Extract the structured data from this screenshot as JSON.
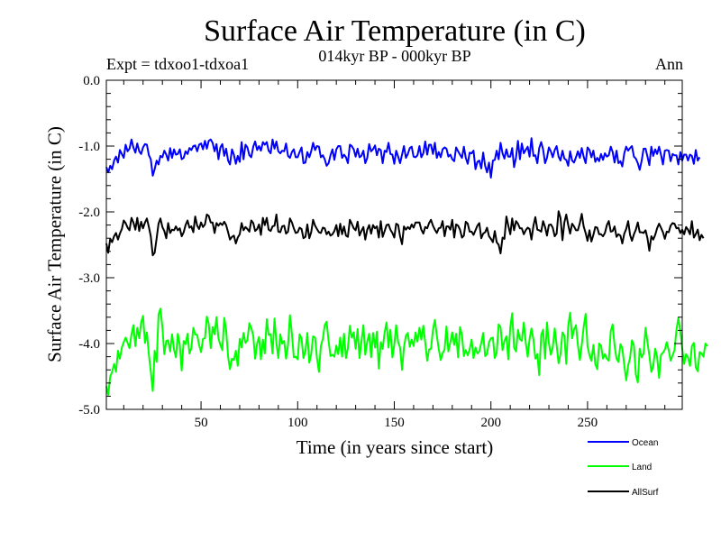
{
  "chart_data": {
    "type": "line",
    "title": "Surface Air Temperature (in C)",
    "subtitle": "014kyr BP - 000kyr BP",
    "experiment": "Expt = tdxoo1-tdxoa1",
    "season": "Ann",
    "xlabel": "Time (in years since start)",
    "ylabel": "Surface Air Temperature (in C)",
    "xlim": [
      1,
      299
    ],
    "ylim": [
      -5.0,
      0.0
    ],
    "xticks": [
      50,
      100,
      150,
      200,
      250
    ],
    "xtick_labels": [
      "50",
      "100",
      "150",
      "200",
      "250"
    ],
    "yticks": [
      0.0,
      -1.0,
      -2.0,
      -3.0,
      -4.0,
      -5.0
    ],
    "ytick_labels": [
      "0.0",
      "-1.0",
      "-2.0",
      "-3.0",
      "-4.0",
      "-5.0"
    ],
    "series": [
      {
        "name": "Ocean",
        "color": "#0000ff",
        "values": [
          -1.32,
          -1.4,
          -1.3,
          -1.35,
          -1.22,
          -1.16,
          -1.25,
          -1.06,
          -1.12,
          -1.18,
          -0.98,
          -1.08,
          -1.04,
          -0.9,
          -1.02,
          -1.1,
          -0.96,
          -1.08,
          -1.12,
          -1.02,
          -0.97,
          -0.98,
          -1.14,
          -1.2,
          -1.45,
          -1.35,
          -1.22,
          -1.28,
          -1.15,
          -1.17,
          -1.07,
          -1.13,
          -1.22,
          -1.03,
          -1.18,
          -1.05,
          -1.13,
          -1.12,
          -1.05,
          -1.2,
          -1.18,
          -1.08,
          -1.12,
          -1.03,
          -1.06,
          -1.0,
          -0.99,
          -1.08,
          -0.98,
          -0.96,
          -1.05,
          -0.92,
          -1.04,
          -0.92,
          -0.9,
          -0.95,
          -1.08,
          -0.97,
          -1.2,
          -1.02,
          -0.97,
          -1.15,
          -1.04,
          -1.22,
          -1.28,
          -1.05,
          -1.13,
          -1.27,
          -1.15,
          -1.24,
          -0.94,
          -1.2,
          -0.98,
          -1.02,
          -1.14,
          -1.17,
          -1.01,
          -0.93,
          -1.06,
          -1.0,
          -1.07,
          -0.94,
          -0.98,
          -0.94,
          -1.07,
          -1.11,
          -0.9,
          -1.04,
          -0.93,
          -1.08,
          -1.11,
          -1.07,
          -1.08,
          -0.96,
          -1.15,
          -1.18,
          -1.09,
          -1.05,
          -1.17,
          -1.17,
          -1.09,
          -1.02,
          -1.26,
          -1.25,
          -1.09,
          -1.17,
          -1.08,
          -0.95,
          -1.06,
          -1.0,
          -1.01,
          -1.17,
          -1.14,
          -1.2,
          -1.3,
          -1.26,
          -1.14,
          -1.05,
          -1.21,
          -1.05,
          -1.0,
          -1.0,
          -1.18,
          -1.13,
          -1.17,
          -1.26,
          -0.98,
          -1.0,
          -1.05,
          -1.16,
          -1.04,
          -1.17,
          -1.15,
          -1.07,
          -1.26,
          -1.18,
          -0.97,
          -1.08,
          -1.05,
          -0.99,
          -1.14,
          -1.04,
          -1.06,
          -1.26,
          -1.07,
          -1.09,
          -0.95,
          -1.12,
          -1.13,
          -1.27,
          -1.07,
          -1.16,
          -1.26,
          -1.13,
          -1.0,
          -1.18,
          -1.12,
          -1.03,
          -1.01,
          -1.16,
          -1.17,
          -1.14,
          -1.0,
          -1.17,
          -1.11,
          -0.93,
          -1.13,
          -0.98,
          -0.98,
          -1.12,
          -0.95,
          -1.18,
          -1.09,
          -1.17,
          -1.05,
          -1.02,
          -1.04,
          -1.16,
          -1.13,
          -1.2,
          -1.23,
          -1.02,
          -1.08,
          -1.13,
          -1.18,
          -1.01,
          -1.18,
          -1.27,
          -1.1,
          -1.11,
          -1.07,
          -1.35,
          -1.24,
          -1.22,
          -1.34,
          -1.1,
          -1.3,
          -1.4,
          -1.25,
          -1.48,
          -1.22,
          -1.21,
          -1.07,
          -1.2,
          -0.95,
          -1.11,
          -1.19,
          -1.05,
          -1.16,
          -1.16,
          -1.03,
          -1.32,
          -1.17,
          -0.92,
          -1.2,
          -0.96,
          -1.11,
          -1.06,
          -1.01,
          -1.16,
          -0.88,
          -1.15,
          -1.14,
          -1.26,
          -1.03,
          -0.94,
          -1.05,
          -1.26,
          -1.18,
          -1.02,
          -1.08,
          -1.17,
          -1.06,
          -1.0,
          -1.16,
          -1.22,
          -1.07,
          -1.19,
          -1.21,
          -1.3,
          -1.08,
          -1.22,
          -1.25,
          -1.17,
          -1.08,
          -1.18,
          -1.03,
          -1.16,
          -1.26,
          -1.02,
          -1.06,
          -1.17,
          -1.07,
          -1.24,
          -1.18,
          -1.23,
          -1.12,
          -1.21,
          -1.11,
          -1.16,
          -1.14,
          -1.01,
          -1.09,
          -1.25,
          -1.07,
          -1.26,
          -1.23,
          -1.31,
          -1.11,
          -1.01,
          -1.07,
          -1.03,
          -1.0,
          -1.16,
          -1.19,
          -1.26,
          -1.36,
          -1.22,
          -1.04,
          -1.04,
          -1.16,
          -1.29,
          -1.01,
          -1.15,
          -1.05,
          -1.12,
          -1.01,
          -1.13,
          -1.28,
          -1.07,
          -1.06,
          -1.07,
          -1.23,
          -1.12,
          -1.14,
          -1.14,
          -1.28,
          -1.09,
          -1.22,
          -1.13,
          -1.13,
          -1.22,
          -1.13,
          -1.15,
          -1.27,
          -1.06,
          -1.22,
          -1.17
        ]
      },
      {
        "name": "Land",
        "color": "#00ff00",
        "values": [
          -4.65,
          -4.78,
          -4.5,
          -4.43,
          -4.31,
          -4.43,
          -4.11,
          -4.23,
          -4.06,
          -3.98,
          -3.91,
          -3.99,
          -4.07,
          -3.86,
          -3.72,
          -4.04,
          -3.76,
          -3.92,
          -3.68,
          -3.58,
          -3.99,
          -3.83,
          -4.17,
          -4.42,
          -4.72,
          -4.11,
          -4.28,
          -3.56,
          -3.47,
          -3.75,
          -4.16,
          -3.96,
          -3.95,
          -4.12,
          -3.86,
          -4.09,
          -4.21,
          -3.85,
          -4.02,
          -4.41,
          -3.96,
          -4.01,
          -3.85,
          -4.15,
          -4.07,
          -3.76,
          -3.86,
          -3.87,
          -4.02,
          -4.13,
          -3.93,
          -3.92,
          -3.59,
          -3.7,
          -4.07,
          -3.75,
          -3.86,
          -3.6,
          -3.92,
          -4.02,
          -4.1,
          -3.61,
          -3.79,
          -4.2,
          -4.39,
          -4.23,
          -4.25,
          -4.11,
          -4.34,
          -3.93,
          -4.06,
          -3.84,
          -3.99,
          -3.95,
          -3.69,
          -3.76,
          -3.88,
          -4.23,
          -4.0,
          -3.9,
          -4.24,
          -3.94,
          -4.15,
          -3.63,
          -3.87,
          -3.86,
          -4.15,
          -3.62,
          -3.99,
          -4.22,
          -3.86,
          -4.0,
          -3.96,
          -4.23,
          -4.02,
          -3.57,
          -3.85,
          -4.21,
          -4.2,
          -4.24,
          -3.86,
          -3.92,
          -4.22,
          -4.12,
          -3.84,
          -4.29,
          -4.16,
          -3.89,
          -3.91,
          -4.22,
          -4.43,
          -4.04,
          -3.93,
          -3.72,
          -3.67,
          -3.96,
          -4.19,
          -4.17,
          -4.2,
          -4.03,
          -4.16,
          -3.91,
          -4.2,
          -3.85,
          -4.22,
          -4.07,
          -3.73,
          -3.91,
          -3.83,
          -4.08,
          -3.78,
          -4.22,
          -3.98,
          -3.72,
          -4.17,
          -3.97,
          -3.85,
          -4.21,
          -3.84,
          -4.06,
          -3.82,
          -4.38,
          -3.98,
          -4.08,
          -3.83,
          -3.68,
          -4.06,
          -3.79,
          -4.21,
          -4.02,
          -3.72,
          -3.98,
          -4.06,
          -4.4,
          -4.06,
          -3.88,
          -3.84,
          -4.05,
          -3.94,
          -4.04,
          -3.83,
          -3.97,
          -3.76,
          -3.94,
          -3.73,
          -3.98,
          -4.26,
          -4.09,
          -4.08,
          -3.79,
          -3.64,
          -3.88,
          -4.08,
          -4.25,
          -4.15,
          -4.09,
          -3.74,
          -4.12,
          -3.98,
          -3.83,
          -4.02,
          -3.85,
          -4.21,
          -3.75,
          -3.87,
          -4.19,
          -4.1,
          -4.18,
          -4.09,
          -3.94,
          -4.22,
          -4.06,
          -4.15,
          -4.12,
          -3.99,
          -3.84,
          -4.19,
          -4.16,
          -3.98,
          -3.92,
          -3.91,
          -4.22,
          -4.14,
          -3.71,
          -3.75,
          -4.1,
          -3.96,
          -3.89,
          -4.24,
          -3.75,
          -3.54,
          -4.06,
          -4.12,
          -3.79,
          -3.93,
          -3.96,
          -3.68,
          -3.98,
          -4.2,
          -3.93,
          -3.77,
          -3.94,
          -4.23,
          -4.16,
          -4.48,
          -3.87,
          -3.79,
          -4.23,
          -3.68,
          -3.99,
          -4.17,
          -4.06,
          -3.77,
          -4.02,
          -4.3,
          -4.16,
          -3.83,
          -3.88,
          -4.31,
          -3.73,
          -3.53,
          -3.92,
          -3.79,
          -3.72,
          -4.02,
          -4.25,
          -4.02,
          -3.75,
          -3.55,
          -4.04,
          -4.18,
          -4.26,
          -4.02,
          -4.31,
          -4.39,
          -4.0,
          -4.03,
          -4.23,
          -4.16,
          -4.23,
          -4.26,
          -3.81,
          -3.71,
          -4.03,
          -4.23,
          -4.28,
          -4.01,
          -4.07,
          -4.33,
          -4.56,
          -4.33,
          -4.22,
          -3.95,
          -4.03,
          -4.47,
          -4.59,
          -4.08,
          -4.21,
          -4.15,
          -3.76,
          -3.98,
          -4.18,
          -4.43,
          -4.35,
          -4.08,
          -4.2,
          -4.52,
          -4.17,
          -4.14,
          -4.09,
          -3.98,
          -4.1,
          -4.26,
          -4.18,
          -4.1,
          -3.79,
          -3.61,
          -3.82,
          -4.08,
          -4.31,
          -4.16,
          -4.21,
          -4.34,
          -4.04,
          -3.99,
          -4.36,
          -4.42,
          -4.13,
          -4.15,
          -4.2,
          -4.0,
          -4.04
        ]
      },
      {
        "name": "AllSurf",
        "color": "#000000",
        "values": [
          -2.48,
          -2.62,
          -2.41,
          -2.46,
          -2.37,
          -2.32,
          -2.42,
          -2.33,
          -2.26,
          -2.13,
          -2.17,
          -2.24,
          -2.28,
          -2.09,
          -2.16,
          -2.27,
          -2.09,
          -2.29,
          -2.15,
          -2.25,
          -2.16,
          -2.1,
          -2.23,
          -2.37,
          -2.66,
          -2.62,
          -2.4,
          -2.18,
          -2.1,
          -2.23,
          -2.29,
          -2.4,
          -2.17,
          -2.32,
          -2.27,
          -2.28,
          -2.22,
          -2.28,
          -2.25,
          -2.37,
          -2.31,
          -2.2,
          -2.13,
          -2.24,
          -2.22,
          -2.31,
          -2.07,
          -2.21,
          -2.26,
          -2.16,
          -2.23,
          -2.19,
          -2.04,
          -2.06,
          -2.16,
          -2.16,
          -2.32,
          -2.17,
          -2.21,
          -2.17,
          -2.2,
          -2.15,
          -2.2,
          -2.31,
          -2.42,
          -2.38,
          -2.36,
          -2.48,
          -2.39,
          -2.34,
          -2.17,
          -2.28,
          -2.23,
          -2.26,
          -2.3,
          -2.13,
          -2.17,
          -2.29,
          -2.26,
          -2.19,
          -2.35,
          -2.09,
          -2.2,
          -2.09,
          -2.27,
          -2.29,
          -2.22,
          -2.21,
          -2.04,
          -2.3,
          -2.31,
          -2.22,
          -2.21,
          -2.33,
          -2.3,
          -2.1,
          -2.16,
          -2.25,
          -2.32,
          -2.31,
          -2.24,
          -2.26,
          -2.4,
          -2.38,
          -2.19,
          -2.4,
          -2.31,
          -2.12,
          -2.21,
          -2.26,
          -2.31,
          -2.32,
          -2.24,
          -2.25,
          -2.34,
          -2.3,
          -2.36,
          -2.34,
          -2.29,
          -2.2,
          -2.37,
          -2.18,
          -2.34,
          -2.22,
          -2.36,
          -2.38,
          -2.12,
          -2.18,
          -2.25,
          -2.28,
          -2.15,
          -2.36,
          -2.29,
          -2.23,
          -2.42,
          -2.27,
          -2.2,
          -2.33,
          -2.2,
          -2.25,
          -2.22,
          -2.39,
          -2.14,
          -2.38,
          -2.29,
          -2.2,
          -2.19,
          -2.27,
          -2.32,
          -2.39,
          -2.18,
          -2.2,
          -2.37,
          -2.49,
          -2.22,
          -2.27,
          -2.23,
          -2.26,
          -2.19,
          -2.24,
          -2.16,
          -2.16,
          -2.16,
          -2.27,
          -2.33,
          -2.23,
          -2.25,
          -2.17,
          -2.12,
          -2.21,
          -2.27,
          -2.32,
          -2.25,
          -2.24,
          -2.14,
          -2.37,
          -2.22,
          -2.22,
          -2.27,
          -2.12,
          -2.39,
          -2.19,
          -2.21,
          -2.27,
          -2.39,
          -2.36,
          -2.15,
          -2.18,
          -2.3,
          -2.3,
          -2.35,
          -2.28,
          -2.21,
          -2.17,
          -2.4,
          -2.33,
          -2.31,
          -2.24,
          -2.37,
          -2.41,
          -2.46,
          -2.29,
          -2.46,
          -2.5,
          -2.63,
          -2.39,
          -2.41,
          -2.07,
          -2.21,
          -2.34,
          -2.1,
          -2.28,
          -2.14,
          -2.18,
          -2.25,
          -2.25,
          -2.34,
          -2.28,
          -2.24,
          -2.26,
          -2.42,
          -2.21,
          -2.08,
          -2.27,
          -2.28,
          -2.3,
          -2.14,
          -2.23,
          -2.36,
          -2.2,
          -2.19,
          -2.24,
          -2.37,
          -2.33,
          -1.99,
          -2.09,
          -2.43,
          -2.16,
          -2.04,
          -2.2,
          -2.33,
          -2.18,
          -2.22,
          -2.28,
          -2.28,
          -2.17,
          -2.03,
          -2.22,
          -2.32,
          -2.44,
          -2.28,
          -2.45,
          -2.35,
          -2.23,
          -2.24,
          -2.34,
          -2.34,
          -2.37,
          -2.32,
          -2.2,
          -2.14,
          -2.3,
          -2.29,
          -2.22,
          -2.38,
          -2.34,
          -2.36,
          -2.48,
          -2.33,
          -2.26,
          -2.14,
          -2.35,
          -2.44,
          -2.34,
          -2.27,
          -2.16,
          -2.31,
          -2.31,
          -2.32,
          -2.28,
          -2.4,
          -2.59,
          -2.37,
          -2.42,
          -2.35,
          -2.25,
          -2.18,
          -2.24,
          -2.31,
          -2.41,
          -2.3,
          -2.31,
          -2.21,
          -2.17,
          -2.18,
          -2.25,
          -2.24,
          -2.32,
          -2.27,
          -2.34,
          -2.23,
          -2.27,
          -2.34,
          -2.14,
          -2.39,
          -2.34,
          -2.27,
          -2.43,
          -2.35,
          -2.4
        ]
      }
    ],
    "legend": {
      "position": "bottom-right",
      "entries": [
        "Ocean",
        "Land",
        "AllSurf"
      ]
    }
  }
}
